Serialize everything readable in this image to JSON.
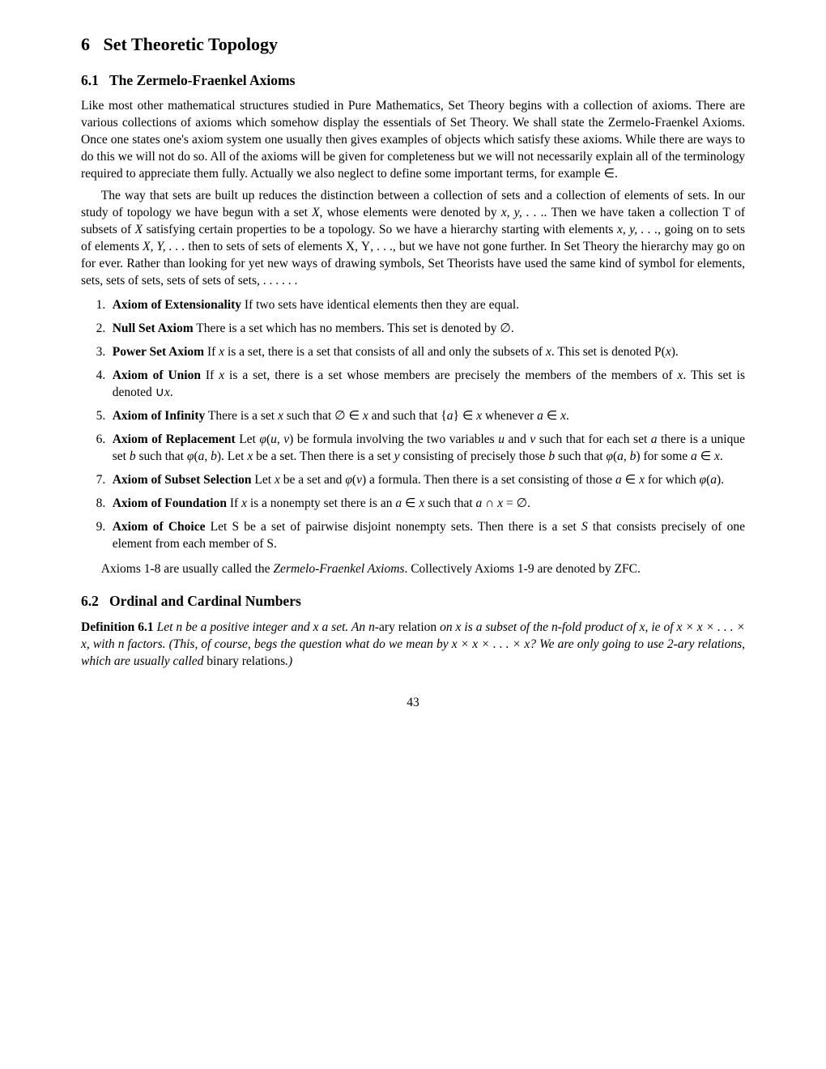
{
  "section": {
    "number": "6",
    "title": "Set Theoretic Topology"
  },
  "subsection1": {
    "number": "6.1",
    "title": "The Zermelo-Fraenkel Axioms"
  },
  "para1": "Like most other mathematical structures studied in Pure Mathematics, Set Theory begins with a collection of axioms. There are various collections of axioms which somehow display the essentials of Set Theory. We shall state the Zermelo-Fraenkel Axioms. Once one states one's axiom system one usually then gives examples of objects which satisfy these axioms. While there are ways to do this we will not do so. All of the axioms will be given for completeness but we will not necessarily explain all of the terminology required to appreciate them fully. Actually we also neglect to define some important terms, for example ∈.",
  "para2a": "The way that sets are built up reduces the distinction between a collection of sets and a collection of elements of sets. In our study of topology we have begun with a set ",
  "para2b": ", whose elements were denoted by ",
  "para2c": " Then we have taken a collection ",
  "para2d": " of subsets of ",
  "para2e": " satisfying certain properties to be a topology. So we have a hierarchy starting with elements ",
  "para2f": ", going on to sets of elements ",
  "para2g": " then to sets of sets of elements ",
  "para2h": ", but we have not gone further. In Set Theory the hierarchy may go on for ever. Rather than looking for yet new ways of drawing symbols, Set Theorists have used the same kind of symbol for elements, sets, sets of sets, sets of sets of sets, . . . . . .",
  "axioms": {
    "a1_name": "Axiom of Extensionality",
    "a1_text": " If two sets have identical elements then they are equal.",
    "a2_name": "Null Set Axiom",
    "a2_text": " There is a set which has no members. This set is denoted by ∅.",
    "a3_name": "Power Set Axiom",
    "a3_text_a": " If ",
    "a3_text_b": " is a set, there is a set that consists of all and only the subsets of ",
    "a3_text_c": ". This set is denoted ",
    "a4_name": "Axiom of Union",
    "a4_text_a": " If ",
    "a4_text_b": " is a set, there is a set whose members are precisely the members of the members of ",
    "a4_text_c": ". This set is denoted ∪",
    "a5_name": "Axiom of Infinity",
    "a5_text_a": " There is a set ",
    "a5_text_b": " such that ∅ ∈ ",
    "a5_text_c": " and such that {",
    "a5_text_d": "} ∈ ",
    "a5_text_e": " whenever ",
    "a5_text_f": " ∈ ",
    "a6_name": "Axiom of Replacement",
    "a6_text_a": " Let ",
    "a6_text_b": " be formula involving the two variables ",
    "a6_text_c": " and ",
    "a6_text_d": " such that for each set ",
    "a6_text_e": " there is a unique set ",
    "a6_text_f": " such that ",
    "a6_text_g": ". Let ",
    "a6_text_h": " be a set. Then there is a set ",
    "a6_text_i": " consisting of precisely those ",
    "a6_text_j": " such that ",
    "a6_text_k": " for some ",
    "a7_name": "Axiom of Subset Selection",
    "a7_text_a": " Let ",
    "a7_text_b": " be a set and ",
    "a7_text_c": " a formula. Then there is a set consisting of those ",
    "a7_text_d": " for which ",
    "a8_name": "Axiom of Foundation",
    "a8_text_a": " If ",
    "a8_text_b": " is a nonempty set there is an ",
    "a8_text_c": " such that ",
    "a9_name": "Axiom of Choice",
    "a9_text_a": " Let ",
    "a9_text_b": " be a set of pairwise disjoint nonempty sets. Then there is a set ",
    "a9_text_c": " that consists precisely of one element from each member of "
  },
  "para3a": "Axioms 1-8 are usually called the ",
  "para3b": "Zermelo-Fraenkel Axioms",
  "para3c": ". Collectively Axioms 1-9 are denoted by ZFC.",
  "subsection2": {
    "number": "6.2",
    "title": "Ordinal and Cardinal Numbers"
  },
  "def": {
    "label": "Definition 6.1",
    "text_a": " Let ",
    "text_b": " be a positive integer and ",
    "text_c": " a set. An ",
    "text_d": "ary relation",
    "text_e": " on ",
    "text_f": " is a subset of the ",
    "text_g": "-fold product of ",
    "text_h": ", ie of ",
    "text_i": ", with ",
    "text_j": " factors. (This, of course, begs the question what do we mean by ",
    "text_k": "? We are only going to use 2-ary relations, which are usually called ",
    "text_l": "binary relations",
    "text_m": ".)"
  },
  "pagenum": "43"
}
